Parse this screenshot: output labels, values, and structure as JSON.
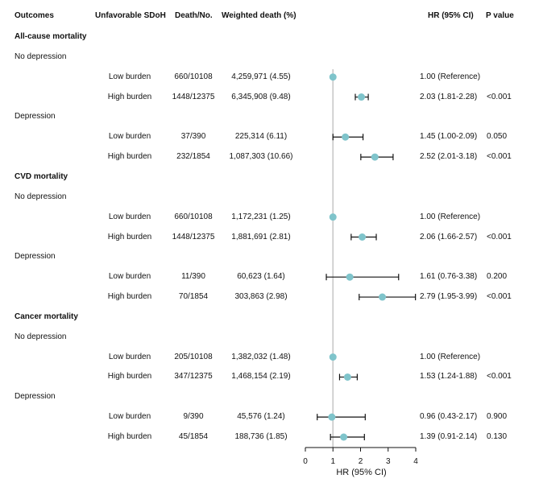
{
  "headers": {
    "outcomes": "Outcomes",
    "sdoh": "Unfavorable SDoH",
    "death": "Death/No.",
    "weighted": "Weighted death (%)",
    "hr": "HR (95% CI)",
    "p": "P value"
  },
  "rows": [
    {
      "type": "section",
      "label": "All-cause mortality"
    },
    {
      "type": "group",
      "label": "No depression"
    },
    {
      "type": "data",
      "burden": "Low burden",
      "death": "660/10108",
      "weighted": "4,259,971 (4.55)",
      "hr_text": "1.00 (Reference)",
      "p": ""
    },
    {
      "type": "data",
      "burden": "High burden",
      "death": "1448/12375",
      "weighted": "6,345,908 (9.48)",
      "hr_text": "2.03 (1.81-2.28)",
      "p": "<0.001"
    },
    {
      "type": "group",
      "label": "Depression"
    },
    {
      "type": "data",
      "burden": "Low burden",
      "death": "37/390",
      "weighted": "225,314 (6.11)",
      "hr_text": "1.45 (1.00-2.09)",
      "p": "0.050"
    },
    {
      "type": "data",
      "burden": "High burden",
      "death": "232/1854",
      "weighted": "1,087,303 (10.66)",
      "hr_text": "2.52 (2.01-3.18)",
      "p": "<0.001"
    },
    {
      "type": "section",
      "label": "CVD mortality"
    },
    {
      "type": "group",
      "label": "No depression"
    },
    {
      "type": "data",
      "burden": "Low burden",
      "death": "660/10108",
      "weighted": "1,172,231 (1.25)",
      "hr_text": "1.00 (Reference)",
      "p": ""
    },
    {
      "type": "data",
      "burden": "High burden",
      "death": "1448/12375",
      "weighted": "1,881,691 (2.81)",
      "hr_text": "2.06 (1.66-2.57)",
      "p": "<0.001"
    },
    {
      "type": "group",
      "label": "Depression"
    },
    {
      "type": "data",
      "burden": "Low burden",
      "death": "11/390",
      "weighted": "60,623 (1.64)",
      "hr_text": "1.61 (0.76-3.38)",
      "p": "0.200"
    },
    {
      "type": "data",
      "burden": "High burden",
      "death": "70/1854",
      "weighted": "303,863 (2.98)",
      "hr_text": "2.79 (1.95-3.99)",
      "p": "<0.001"
    },
    {
      "type": "section",
      "label": "Cancer mortality"
    },
    {
      "type": "group",
      "label": "No depression"
    },
    {
      "type": "data",
      "burden": "Low burden",
      "death": "205/10108",
      "weighted": "1,382,032 (1.48)",
      "hr_text": "1.00 (Reference)",
      "p": ""
    },
    {
      "type": "data",
      "burden": "High burden",
      "death": "347/12375",
      "weighted": "1,468,154 (2.19)",
      "hr_text": "1.53 (1.24-1.88)",
      "p": "<0.001"
    },
    {
      "type": "group",
      "label": "Depression"
    },
    {
      "type": "data",
      "burden": "Low burden",
      "death": "9/390",
      "weighted": "45,576 (1.24)",
      "hr_text": "0.96 (0.43-2.17)",
      "p": "0.900"
    },
    {
      "type": "data",
      "burden": "High burden",
      "death": "45/1854",
      "weighted": "188,736 (1.85)",
      "hr_text": "1.39 (0.91-2.14)",
      "p": "0.130"
    }
  ],
  "chart_data": {
    "type": "forest",
    "xlabel": "HR (95% CI)",
    "xlim": [
      0,
      4
    ],
    "xticks": [
      0,
      1,
      2,
      3,
      4
    ],
    "reference_line": 1,
    "point_color": "#7fc4cb",
    "reference_color": "#c8c8c8",
    "series": [
      {
        "outcome": "All-cause mortality",
        "group": "No depression",
        "burden": "Low burden",
        "hr": 1.0,
        "lower": null,
        "upper": null
      },
      {
        "outcome": "All-cause mortality",
        "group": "No depression",
        "burden": "High burden",
        "hr": 2.03,
        "lower": 1.81,
        "upper": 2.28
      },
      {
        "outcome": "All-cause mortality",
        "group": "Depression",
        "burden": "Low burden",
        "hr": 1.45,
        "lower": 1.0,
        "upper": 2.09
      },
      {
        "outcome": "All-cause mortality",
        "group": "Depression",
        "burden": "High burden",
        "hr": 2.52,
        "lower": 2.01,
        "upper": 3.18
      },
      {
        "outcome": "CVD mortality",
        "group": "No depression",
        "burden": "Low burden",
        "hr": 1.0,
        "lower": null,
        "upper": null
      },
      {
        "outcome": "CVD mortality",
        "group": "No depression",
        "burden": "High burden",
        "hr": 2.06,
        "lower": 1.66,
        "upper": 2.57
      },
      {
        "outcome": "CVD mortality",
        "group": "Depression",
        "burden": "Low burden",
        "hr": 1.61,
        "lower": 0.76,
        "upper": 3.38
      },
      {
        "outcome": "CVD mortality",
        "group": "Depression",
        "burden": "High burden",
        "hr": 2.79,
        "lower": 1.95,
        "upper": 3.99
      },
      {
        "outcome": "Cancer mortality",
        "group": "No depression",
        "burden": "Low burden",
        "hr": 1.0,
        "lower": null,
        "upper": null
      },
      {
        "outcome": "Cancer mortality",
        "group": "No depression",
        "burden": "High burden",
        "hr": 1.53,
        "lower": 1.24,
        "upper": 1.88
      },
      {
        "outcome": "Cancer mortality",
        "group": "Depression",
        "burden": "Low burden",
        "hr": 0.96,
        "lower": 0.43,
        "upper": 2.17
      },
      {
        "outcome": "Cancer mortality",
        "group": "Depression",
        "burden": "High burden",
        "hr": 1.39,
        "lower": 0.91,
        "upper": 2.14
      }
    ]
  }
}
